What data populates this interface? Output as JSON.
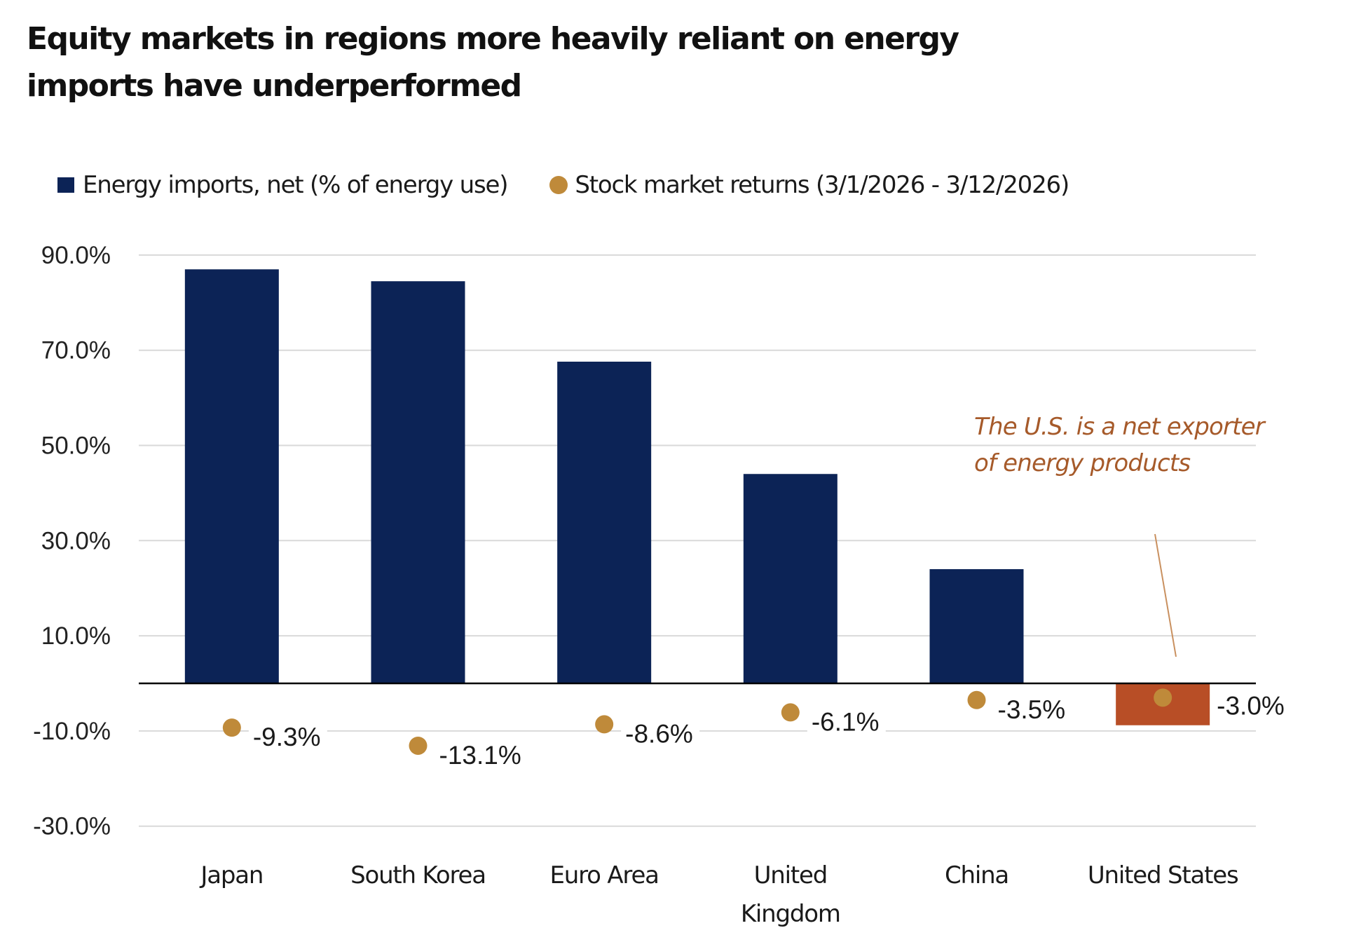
{
  "colors": {
    "imports_bar": "#0C2356",
    "exporter_bar": "#B84E26",
    "returns_dot": "#BF8A3A",
    "annotation": "#A65A2A",
    "gridline": "#D9D9D9",
    "axis": "#000000"
  },
  "chart_data": {
    "type": "bar",
    "title": "Equity markets in regions more heavily reliant on energy imports have underperformed",
    "title_lines": [
      "Equity markets in regions more heavily reliant on energy",
      "imports have underperformed"
    ],
    "xlabel": "",
    "ylabel": "",
    "ylim": [
      -30,
      90
    ],
    "yticks": [
      90,
      70,
      50,
      30,
      10,
      -10,
      -30
    ],
    "ytick_labels": [
      "90.0%",
      "70.0%",
      "50.0%",
      "30.0%",
      "10.0%",
      "-10.0%",
      "-30.0%"
    ],
    "grid": true,
    "legend_position": "top-left",
    "categories": [
      "Japan",
      "South Korea",
      "Euro Area",
      "United Kingdom",
      "China",
      "United States"
    ],
    "category_label_lines": [
      [
        "Japan"
      ],
      [
        "South Korea"
      ],
      [
        "Euro Area"
      ],
      [
        "United",
        "Kingdom"
      ],
      [
        "China"
      ],
      [
        "United States"
      ]
    ],
    "series": [
      {
        "name": "Energy imports, net (% of energy use)",
        "type": "bar",
        "values": [
          87.0,
          84.5,
          67.6,
          44.0,
          24.0,
          -8.8
        ],
        "unit": "%"
      },
      {
        "name": "Stock market returns (3/1/2026 - 3/12/2026)",
        "type": "scatter",
        "values": [
          -9.3,
          -13.1,
          -8.6,
          -6.1,
          -3.5,
          -3.0
        ],
        "labels": [
          "-9.3%",
          "-13.1%",
          "-8.6%",
          "-6.1%",
          "-3.5%",
          "-3.0%"
        ],
        "unit": "%"
      }
    ],
    "annotations": [
      {
        "text_lines": [
          "The U.S. is a net exporter",
          "of energy products"
        ],
        "target_category": "United States",
        "style": "italic"
      }
    ]
  }
}
